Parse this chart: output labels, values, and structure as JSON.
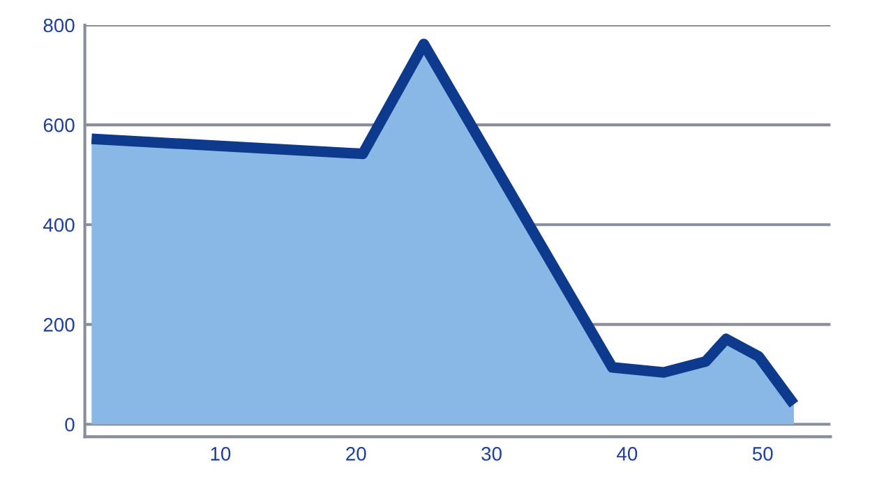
{
  "chart_data": {
    "type": "area",
    "series": [
      {
        "color": "#8ab8e6",
        "x": [
          0.5,
          20.5,
          25,
          38.9,
          42.7,
          45.8,
          47.3,
          49.7,
          52.3
        ],
        "values": [
          572,
          542,
          762,
          114,
          104,
          126,
          171,
          136,
          40
        ]
      }
    ],
    "xlim": [
      0,
      55
    ],
    "xticks": [
      10,
      20,
      30,
      40,
      50
    ],
    "ylim": [
      -25,
      800
    ],
    "yticks": [
      0,
      200,
      400,
      600,
      800
    ],
    "grid": "y",
    "legend": false
  }
}
